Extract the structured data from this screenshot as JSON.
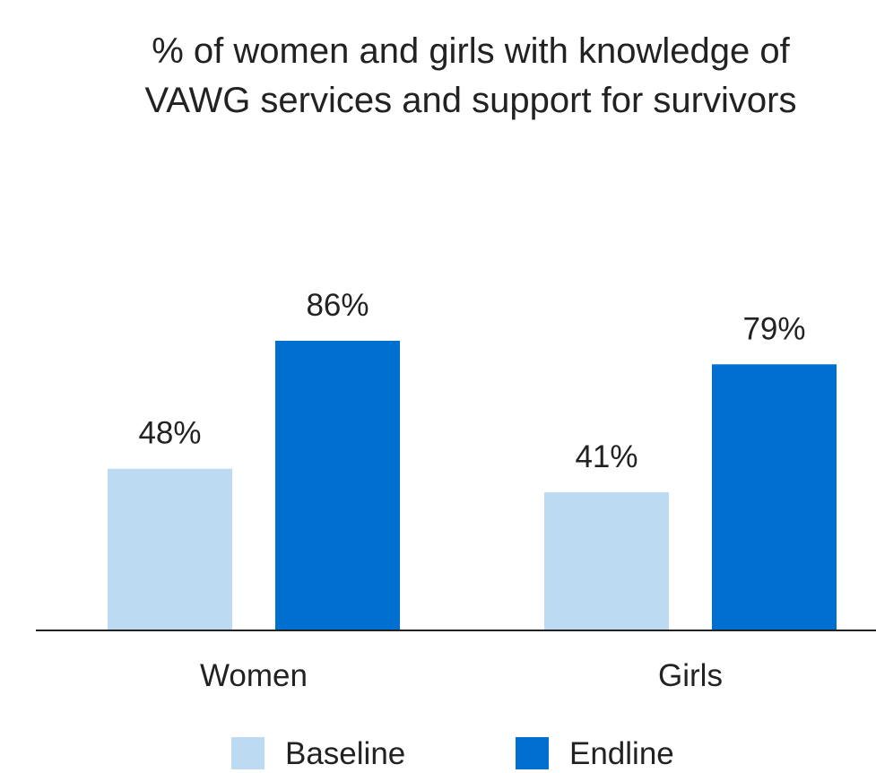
{
  "chart_data": {
    "type": "bar",
    "title": "% of women and girls with knowledge of VAWG services and support for survivors",
    "categories": [
      "Women",
      "Girls"
    ],
    "series": [
      {
        "name": "Baseline",
        "color": "#bddaf3",
        "values": [
          48,
          41
        ],
        "value_labels": [
          "48%",
          "41%"
        ]
      },
      {
        "name": "Endline",
        "color": "#0070d0",
        "values": [
          86,
          79
        ],
        "value_labels": [
          "86%",
          "79%"
        ]
      }
    ],
    "ylim": [
      0,
      100
    ],
    "legend": "bottom"
  }
}
